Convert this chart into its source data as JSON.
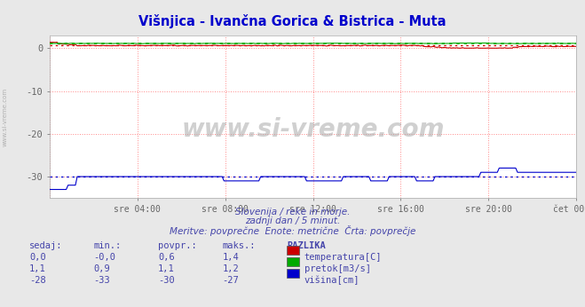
{
  "title": "Višnjica - Ivančna Gorica & Bistrica - Muta",
  "title_color": "#0000cc",
  "bg_color": "#e8e8e8",
  "plot_bg_color": "#ffffff",
  "grid_color": "#ff8888",
  "xlabel_color": "#4444aa",
  "subtitle1": "Slovenija / reke in morje.",
  "subtitle2": "zadnji dan / 5 minut.",
  "subtitle3": "Meritve: povprečne  Enote: metrične  Črta: povprečje",
  "ylim": [
    -35,
    3
  ],
  "yticks": [
    0,
    -10,
    -20,
    -30
  ],
  "xtick_labels": [
    "sre 04:00",
    "sre 08:00",
    "sre 12:00",
    "sre 16:00",
    "sre 20:00",
    "čet 00:00"
  ],
  "n_points": 288,
  "temp_color": "#cc0000",
  "pretok_color": "#00aa00",
  "visina_color": "#0000cc",
  "avg_temp": 0.6,
  "avg_pretok": 1.1,
  "avg_visina": -30,
  "watermark": "www.si-vreme.com",
  "table_headers": [
    "sedaj:",
    "min.:",
    "povpr.:",
    "maks.:",
    "RAZLIKA"
  ],
  "table_col4_bold": true,
  "table_rows": [
    [
      "0,0",
      "-0,0",
      "0,6",
      "1,4",
      "temperatura[C]",
      "#cc0000"
    ],
    [
      "1,1",
      "0,9",
      "1,1",
      "1,2",
      "pretok[m3/s]",
      "#00aa00"
    ],
    [
      "-28",
      "-33",
      "-30",
      "-27",
      "višina[cm]",
      "#0000cc"
    ]
  ],
  "left_label": "www.si-vreme.com"
}
